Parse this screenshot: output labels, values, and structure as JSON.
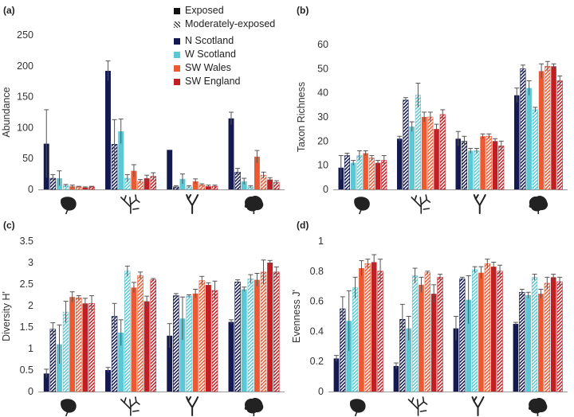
{
  "legend": {
    "exposed": "Exposed",
    "moderately_exposed": "Moderately-exposed",
    "regions": [
      "N Scotland",
      "W Scotland",
      "SW Wales",
      "SW England"
    ],
    "colors": [
      "#141a4f",
      "#5cc8d4",
      "#ec5a34",
      "#c01f24"
    ]
  },
  "chart_data": [
    {
      "type": "bar",
      "panel": "(a)",
      "ylabel": "Abundance",
      "ylim": [
        0,
        250
      ],
      "yticks": [
        "0",
        "50",
        "100",
        "150",
        "200",
        "250"
      ],
      "categories": [
        "macroalga-1",
        "macroalga-2",
        "macroalga-3",
        "macroalga-4"
      ],
      "series": [
        {
          "name": "N Scotland Exposed",
          "values": [
            74,
            192,
            64,
            115
          ],
          "errors": [
            55,
            16,
            0,
            10
          ]
        },
        {
          "name": "N Scotland Moderately-exposed",
          "values": [
            18,
            73,
            4,
            28
          ],
          "errors": [
            6,
            40,
            2,
            6
          ]
        },
        {
          "name": "W Scotland Exposed",
          "values": [
            18,
            94,
            17,
            13
          ],
          "errors": [
            12,
            20,
            8,
            5
          ]
        },
        {
          "name": "W Scotland Moderately-exposed",
          "values": [
            6,
            18,
            4,
            4
          ],
          "errors": [
            2,
            6,
            2,
            2
          ]
        },
        {
          "name": "SW Wales Exposed",
          "values": [
            5,
            30,
            13,
            53
          ],
          "errors": [
            2,
            10,
            4,
            10
          ]
        },
        {
          "name": "SW Wales Moderately-exposed",
          "values": [
            4,
            13,
            7,
            23
          ],
          "errors": [
            1,
            3,
            2,
            5
          ]
        },
        {
          "name": "SW England Exposed",
          "values": [
            3,
            18,
            5,
            16
          ],
          "errors": [
            1,
            5,
            2,
            3
          ]
        },
        {
          "name": "SW England Moderately-exposed",
          "values": [
            4,
            21,
            5,
            11
          ],
          "errors": [
            1,
            6,
            2,
            3
          ]
        }
      ]
    },
    {
      "type": "bar",
      "panel": "(b)",
      "ylabel": "Taxon Richness",
      "ylim": [
        0,
        60
      ],
      "yticks": [
        "0",
        "10",
        "20",
        "30",
        "40",
        "50",
        "60"
      ],
      "categories": [
        "macroalga-1",
        "macroalga-2",
        "macroalga-3",
        "macroalga-4"
      ],
      "series": [
        {
          "name": "N Scotland Exposed",
          "values": [
            9,
            21,
            21,
            39
          ],
          "errors": [
            5,
            1,
            3,
            3
          ]
        },
        {
          "name": "N Scotland Moderately-exposed",
          "values": [
            14,
            37,
            20,
            50
          ],
          "errors": [
            1,
            1,
            2,
            1.5
          ]
        },
        {
          "name": "W Scotland Exposed",
          "values": [
            11,
            26,
            16,
            42
          ],
          "errors": [
            1,
            2,
            1,
            3
          ]
        },
        {
          "name": "W Scotland Moderately-exposed",
          "values": [
            14,
            39,
            16,
            33
          ],
          "errors": [
            2,
            5,
            1,
            1
          ]
        },
        {
          "name": "SW Wales Exposed",
          "values": [
            15,
            30,
            22,
            49
          ],
          "errors": [
            1,
            2,
            1,
            3
          ]
        },
        {
          "name": "SW Wales Moderately-exposed",
          "values": [
            13,
            30,
            22,
            51
          ],
          "errors": [
            1,
            2,
            1,
            2
          ]
        },
        {
          "name": "SW England Exposed",
          "values": [
            11,
            25,
            20,
            51
          ],
          "errors": [
            1,
            2,
            1,
            1
          ]
        },
        {
          "name": "SW England Moderately-exposed",
          "values": [
            12,
            31,
            18,
            45
          ],
          "errors": [
            2,
            2,
            2,
            2
          ]
        }
      ]
    },
    {
      "type": "bar",
      "panel": "(c)",
      "ylabel": "Diversity H'",
      "ylim": [
        0,
        3.5
      ],
      "yticks": [
        "0",
        "0.5",
        "1",
        "1.5",
        "2",
        "2.5",
        "3",
        "3.5"
      ],
      "categories": [
        "macroalga-1",
        "macroalga-2",
        "macroalga-3",
        "macroalga-4"
      ],
      "series": [
        {
          "name": "N Scotland Exposed",
          "values": [
            0.42,
            0.5,
            1.3,
            1.62
          ],
          "errors": [
            0.1,
            0.06,
            0.28,
            0.05
          ]
        },
        {
          "name": "N Scotland Moderately-exposed",
          "values": [
            1.45,
            1.75,
            2.23,
            2.55
          ],
          "errors": [
            0.15,
            0.3,
            0.05,
            0.05
          ]
        },
        {
          "name": "W Scotland Exposed",
          "values": [
            1.1,
            1.37,
            1.7,
            2.38
          ],
          "errors": [
            0.45,
            0.3,
            0.5,
            0.05
          ]
        },
        {
          "name": "W Scotland Moderately-exposed",
          "values": [
            1.85,
            2.8,
            2.22,
            2.62
          ],
          "errors": [
            0.25,
            0.12,
            0.03,
            0.1
          ]
        },
        {
          "name": "SW Wales Exposed",
          "values": [
            2.2,
            2.42,
            2.28,
            2.6
          ],
          "errors": [
            0.12,
            0.12,
            0.1,
            0.15
          ]
        },
        {
          "name": "SW Wales Moderately-exposed",
          "values": [
            2.18,
            2.7,
            2.58,
            2.78
          ],
          "errors": [
            0.05,
            0.08,
            0.1,
            0.28
          ]
        },
        {
          "name": "SW England Exposed",
          "values": [
            2.05,
            2.1,
            2.48,
            3.0
          ],
          "errors": [
            0.12,
            0.12,
            0.05,
            0.05
          ]
        },
        {
          "name": "SW England Moderately-exposed",
          "values": [
            2.05,
            2.6,
            2.35,
            2.78
          ],
          "errors": [
            0.18,
            0.03,
            0.22,
            0.12
          ]
        }
      ]
    },
    {
      "type": "bar",
      "panel": "(d)",
      "ylabel": "Evenness J'",
      "ylim": [
        0,
        1
      ],
      "yticks": [
        "0",
        "0.2",
        "0.4",
        "0.6",
        "0.8",
        "1"
      ],
      "categories": [
        "macroalga-1",
        "macroalga-2",
        "macroalga-3",
        "macroalga-4"
      ],
      "series": [
        {
          "name": "N Scotland Exposed",
          "values": [
            0.22,
            0.17,
            0.42,
            0.45
          ],
          "errors": [
            0.02,
            0.02,
            0.08,
            0.01
          ]
        },
        {
          "name": "N Scotland Moderately-exposed",
          "values": [
            0.55,
            0.48,
            0.75,
            0.66
          ],
          "errors": [
            0.08,
            0.1,
            0.01,
            0.02
          ]
        },
        {
          "name": "W Scotland Exposed",
          "values": [
            0.47,
            0.42,
            0.61,
            0.64
          ],
          "errors": [
            0.2,
            0.08,
            0.16,
            0.02
          ]
        },
        {
          "name": "W Scotland Moderately-exposed",
          "values": [
            0.69,
            0.77,
            0.81,
            0.76
          ],
          "errors": [
            0.07,
            0.05,
            0.02,
            0.02
          ]
        },
        {
          "name": "SW Wales Exposed",
          "values": [
            0.82,
            0.71,
            0.79,
            0.65
          ],
          "errors": [
            0.05,
            0.05,
            0.04,
            0.03
          ]
        },
        {
          "name": "SW Wales Moderately-exposed",
          "values": [
            0.85,
            0.79,
            0.85,
            0.72
          ],
          "errors": [
            0.03,
            0.01,
            0.03,
            0.04
          ]
        },
        {
          "name": "SW England Exposed",
          "values": [
            0.86,
            0.65,
            0.83,
            0.76
          ],
          "errors": [
            0.05,
            0.06,
            0.03,
            0.02
          ]
        },
        {
          "name": "SW England Moderately-exposed",
          "values": [
            0.8,
            0.76,
            0.8,
            0.73
          ],
          "errors": [
            0.08,
            0.02,
            0.04,
            0.03
          ]
        }
      ]
    }
  ]
}
